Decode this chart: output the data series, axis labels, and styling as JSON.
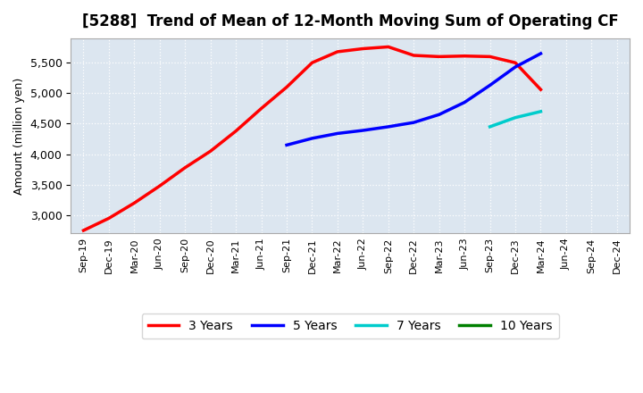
{
  "title": "[5288]  Trend of Mean of 12-Month Moving Sum of Operating CF",
  "ylabel": "Amount (million yen)",
  "background_color": "#ffffff",
  "plot_bg_color": "#dce6f0",
  "grid_color": "#ffffff",
  "ylim": [
    2700,
    5900
  ],
  "yticks": [
    3000,
    3500,
    4000,
    4500,
    5000,
    5500
  ],
  "x_labels": [
    "Sep-19",
    "Dec-19",
    "Mar-20",
    "Jun-20",
    "Sep-20",
    "Dec-20",
    "Mar-21",
    "Jun-21",
    "Sep-21",
    "Dec-21",
    "Mar-22",
    "Jun-22",
    "Sep-22",
    "Dec-22",
    "Mar-23",
    "Jun-23",
    "Sep-23",
    "Dec-23",
    "Mar-24",
    "Jun-24",
    "Sep-24",
    "Dec-24"
  ],
  "series_3y": {
    "label": "3 Years",
    "color": "#ff0000",
    "x": [
      0,
      1,
      2,
      3,
      4,
      5,
      6,
      7,
      8,
      9,
      10,
      11,
      12,
      13,
      14,
      15,
      16,
      17,
      18
    ],
    "y": [
      2750,
      2950,
      3200,
      3480,
      3780,
      4050,
      4380,
      4750,
      5100,
      5500,
      5680,
      5730,
      5760,
      5620,
      5600,
      5610,
      5600,
      5500,
      5060
    ]
  },
  "series_5y": {
    "label": "5 Years",
    "color": "#0000ff",
    "x": [
      8,
      9,
      10,
      11,
      12,
      13,
      14,
      15,
      16,
      17,
      18
    ],
    "y": [
      4150,
      4260,
      4340,
      4390,
      4450,
      4520,
      4650,
      4850,
      5130,
      5430,
      5650
    ]
  },
  "series_7y": {
    "label": "7 Years",
    "color": "#00cccc",
    "x": [
      16,
      17,
      18
    ],
    "y": [
      4450,
      4600,
      4700
    ]
  },
  "series_10y": {
    "label": "10 Years",
    "color": "#008000",
    "x": [],
    "y": []
  }
}
